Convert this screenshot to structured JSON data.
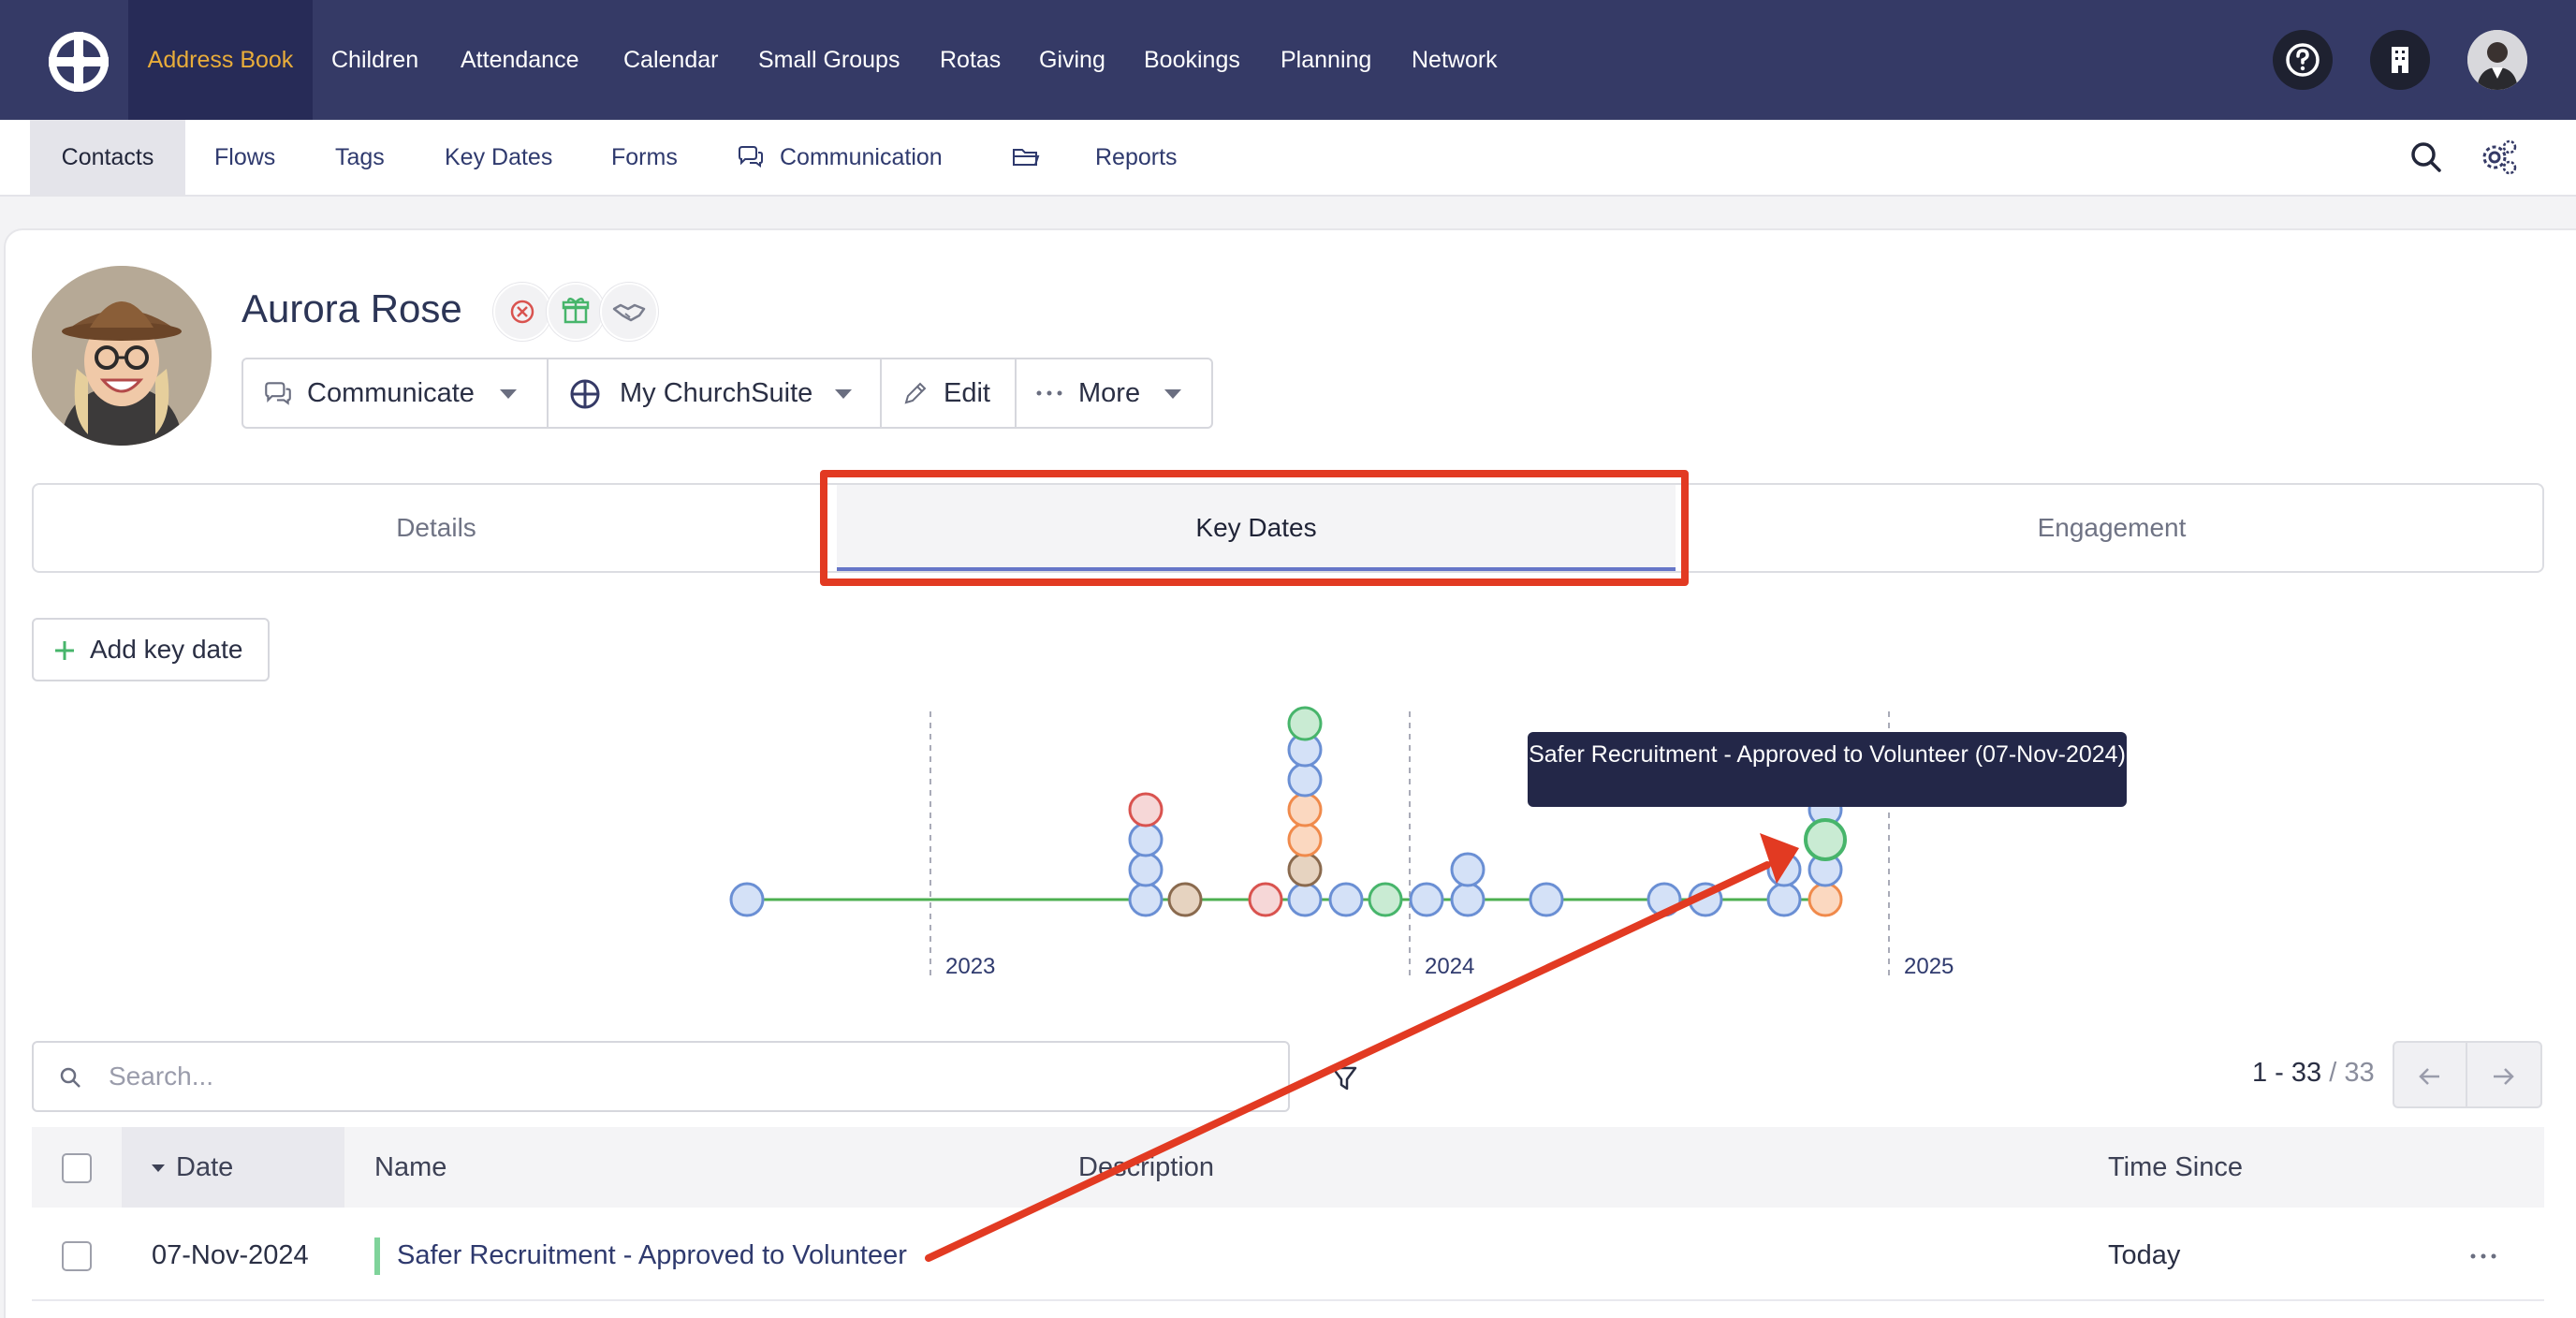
{
  "topnav": {
    "items": [
      "Address Book",
      "Children",
      "Attendance",
      "Calendar",
      "Small Groups",
      "Rotas",
      "Giving",
      "Bookings",
      "Planning",
      "Network"
    ],
    "active": "Address Book",
    "icons": [
      "help-circle-icon",
      "building-icon",
      "user-avatar-icon"
    ]
  },
  "subnav": {
    "items": [
      "Contacts",
      "Flows",
      "Tags",
      "Key Dates",
      "Forms",
      "Communication",
      "Reports"
    ],
    "active": "Contacts",
    "icons": [
      "chat-bubbles-icon",
      "folder-icon",
      "search-icon",
      "settings-gear-icon"
    ]
  },
  "contact": {
    "name": "Aurora Rose",
    "status_icons": [
      "unsubscribed-x-icon",
      "gift-aid-icon",
      "handshake-icon"
    ]
  },
  "actions": {
    "communicate": "Communicate",
    "my_churchsuite": "My ChurchSuite",
    "edit": "Edit",
    "more": "More"
  },
  "tabs": {
    "details": "Details",
    "key_dates": "Key Dates",
    "engagement": "Engagement",
    "active": "Key Dates"
  },
  "add_key_date": "Add key date",
  "timeline": {
    "years": [
      "2023",
      "2024",
      "2025"
    ],
    "tooltip": "Safer Recruitment - Approved to Volunteer (07-Nov-2024)",
    "colors": {
      "line": "#4caf50",
      "blue": "#6a8fd4",
      "red": "#d9534f",
      "orange": "#f08a4b",
      "brown": "#8a6a4e",
      "green": "#47b56b"
    }
  },
  "search": {
    "placeholder": "Search..."
  },
  "pagination": {
    "range": "1 - 33",
    "total": "/ 33"
  },
  "table": {
    "columns": [
      "Date",
      "Name",
      "Description",
      "Time Since"
    ],
    "rows": [
      {
        "date": "07-Nov-2024",
        "name": "Safer Recruitment - Approved to Volunteer",
        "description": "",
        "time_since": "Today"
      }
    ]
  }
}
